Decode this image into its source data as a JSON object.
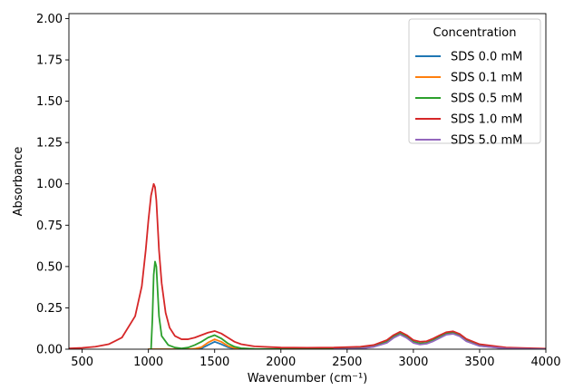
{
  "chart_data": {
    "type": "line",
    "title": "",
    "xlabel": "Wavenumber (cm⁻¹)",
    "ylabel": "Absorbance",
    "xlim": [
      400,
      4000
    ],
    "ylim": [
      0,
      2.03
    ],
    "xticks": [
      "500",
      "1000",
      "1500",
      "2000",
      "2500",
      "3000",
      "3500",
      "4000"
    ],
    "yticks": [
      "0.00",
      "0.25",
      "0.50",
      "0.75",
      "1.00",
      "1.25",
      "1.50",
      "1.75",
      "2.00"
    ],
    "grid": false,
    "legend": {
      "title": "Concentration",
      "placement": "top-right"
    },
    "series": [
      {
        "name": "SDS 0.0 mM",
        "color": "#1f77b4",
        "x": [
          1000,
          1030,
          1060,
          1100,
          1150,
          1200,
          1250,
          1300,
          1350,
          1400,
          1450,
          1500,
          1550,
          1600,
          1650,
          1700,
          1800,
          2000,
          2200,
          2400,
          2600,
          2700,
          2800,
          2850,
          2900,
          2950,
          3000,
          3050,
          3100,
          3150,
          3200,
          3250,
          3300,
          3350,
          3400,
          3500,
          3700,
          4000
        ],
        "y": [
          0,
          0,
          0,
          0,
          0,
          0,
          0,
          0,
          0,
          0.005,
          0.025,
          0.045,
          0.03,
          0.012,
          0.004,
          0.001,
          0,
          0,
          0,
          0,
          0.005,
          0.015,
          0.04,
          0.07,
          0.09,
          0.07,
          0.04,
          0.03,
          0.035,
          0.05,
          0.07,
          0.09,
          0.095,
          0.08,
          0.05,
          0.02,
          0.005,
          0
        ]
      },
      {
        "name": "SDS 0.1 mM",
        "color": "#ff7f0e",
        "x": [
          1000,
          1030,
          1060,
          1100,
          1150,
          1200,
          1250,
          1300,
          1350,
          1400,
          1450,
          1500,
          1550,
          1600,
          1650,
          1700,
          1800,
          2000,
          2200,
          2400,
          2600,
          2700,
          2800,
          2850,
          2900,
          2950,
          3000,
          3050,
          3100,
          3150,
          3200,
          3250,
          3300,
          3350,
          3400,
          3500,
          3700,
          4000
        ],
        "y": [
          0,
          0,
          0,
          0,
          0,
          0,
          0,
          0,
          0.003,
          0.012,
          0.04,
          0.06,
          0.045,
          0.02,
          0.007,
          0.002,
          0,
          0,
          0,
          0,
          0.005,
          0.016,
          0.042,
          0.072,
          0.092,
          0.072,
          0.042,
          0.032,
          0.036,
          0.052,
          0.072,
          0.092,
          0.097,
          0.082,
          0.052,
          0.021,
          0.005,
          0
        ]
      },
      {
        "name": "SDS 0.5 mM",
        "color": "#2ca02c",
        "x": [
          1020,
          1030,
          1040,
          1050,
          1060,
          1070,
          1080,
          1100,
          1150,
          1200,
          1250,
          1300,
          1350,
          1400,
          1450,
          1500,
          1550,
          1600,
          1650,
          1700,
          1800,
          2000,
          2200,
          2400,
          2600,
          2700,
          2800,
          2850,
          2900,
          2950,
          3000,
          3050,
          3100,
          3150,
          3200,
          3250,
          3300,
          3350,
          3400,
          3500,
          3700,
          4000
        ],
        "y": [
          0,
          0.18,
          0.45,
          0.53,
          0.5,
          0.35,
          0.2,
          0.08,
          0.025,
          0.01,
          0.005,
          0.01,
          0.025,
          0.045,
          0.07,
          0.085,
          0.065,
          0.035,
          0.015,
          0.006,
          0.002,
          0.001,
          0.001,
          0.002,
          0.007,
          0.018,
          0.045,
          0.075,
          0.095,
          0.075,
          0.045,
          0.035,
          0.038,
          0.055,
          0.075,
          0.095,
          0.1,
          0.085,
          0.055,
          0.022,
          0.006,
          0.001
        ]
      },
      {
        "name": "SDS 1.0 mM",
        "color": "#d62728",
        "x": [
          400,
          500,
          600,
          700,
          800,
          900,
          950,
          980,
          1000,
          1020,
          1040,
          1050,
          1060,
          1080,
          1100,
          1130,
          1160,
          1200,
          1250,
          1300,
          1350,
          1400,
          1450,
          1500,
          1550,
          1600,
          1650,
          1700,
          1800,
          2000,
          2200,
          2400,
          2600,
          2700,
          2800,
          2850,
          2900,
          2950,
          3000,
          3050,
          3100,
          3150,
          3200,
          3250,
          3300,
          3350,
          3400,
          3500,
          3700,
          4000
        ],
        "y": [
          0.005,
          0.008,
          0.015,
          0.03,
          0.07,
          0.2,
          0.38,
          0.6,
          0.78,
          0.93,
          1.0,
          0.98,
          0.9,
          0.6,
          0.4,
          0.22,
          0.13,
          0.08,
          0.06,
          0.06,
          0.07,
          0.085,
          0.1,
          0.11,
          0.095,
          0.07,
          0.045,
          0.03,
          0.017,
          0.01,
          0.009,
          0.01,
          0.015,
          0.025,
          0.055,
          0.085,
          0.105,
          0.085,
          0.055,
          0.045,
          0.048,
          0.065,
          0.085,
          0.103,
          0.108,
          0.092,
          0.062,
          0.03,
          0.01,
          0.003
        ]
      },
      {
        "name": "SDS 5.0 mM",
        "color": "#9467bd",
        "x": [
          2400,
          2600,
          2700,
          2800,
          2850,
          2900,
          2950,
          3000,
          3050,
          3100,
          3150,
          3200,
          3250,
          3300,
          3350,
          3400,
          3500,
          3700,
          4000
        ],
        "y": [
          0,
          0.004,
          0.014,
          0.038,
          0.068,
          0.088,
          0.068,
          0.038,
          0.028,
          0.033,
          0.048,
          0.068,
          0.088,
          0.093,
          0.078,
          0.048,
          0.019,
          0.004,
          0
        ]
      }
    ]
  }
}
